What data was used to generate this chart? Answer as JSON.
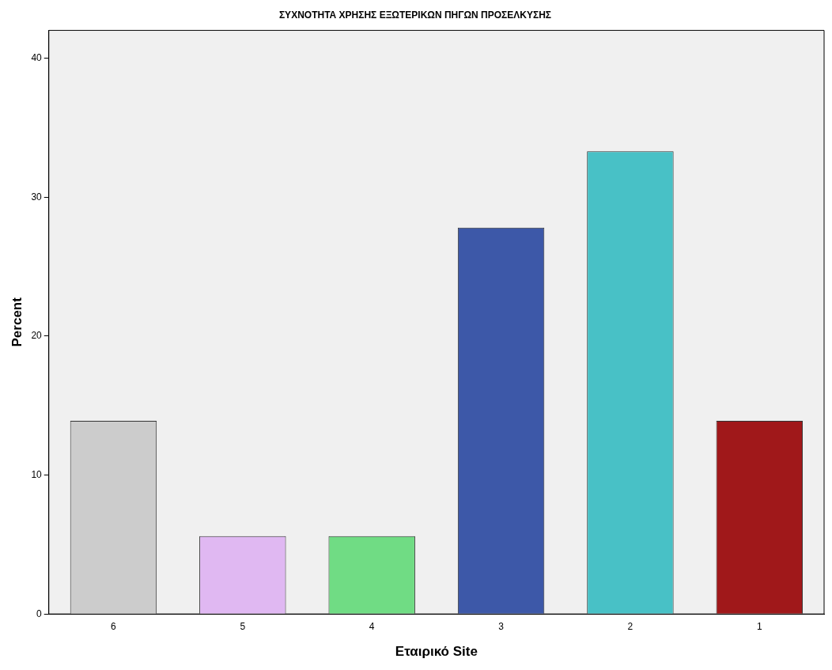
{
  "chart_data": {
    "type": "bar",
    "title": "ΣΥΧΝΟΤΗΤΑ ΧΡΗΣΗΣ ΕΞΩΤΕΡΙΚΩΝ ΠΗΓΩΝ ΠΡΟΣΕΛΚΥΣΗΣ",
    "xlabel": "Εταιρικό Site",
    "ylabel": "Percent",
    "categories": [
      "6",
      "5",
      "4",
      "3",
      "2",
      "1"
    ],
    "values": [
      13.9,
      5.6,
      5.6,
      27.8,
      33.3,
      13.9
    ],
    "colors": [
      "#cccccc",
      "#e0b8f2",
      "#70dc84",
      "#3d58a8",
      "#48c1c6",
      "#a0181a"
    ],
    "ylim": [
      0,
      42
    ],
    "yticks": [
      0,
      10,
      20,
      30,
      40
    ],
    "grid": false,
    "legend": false
  }
}
